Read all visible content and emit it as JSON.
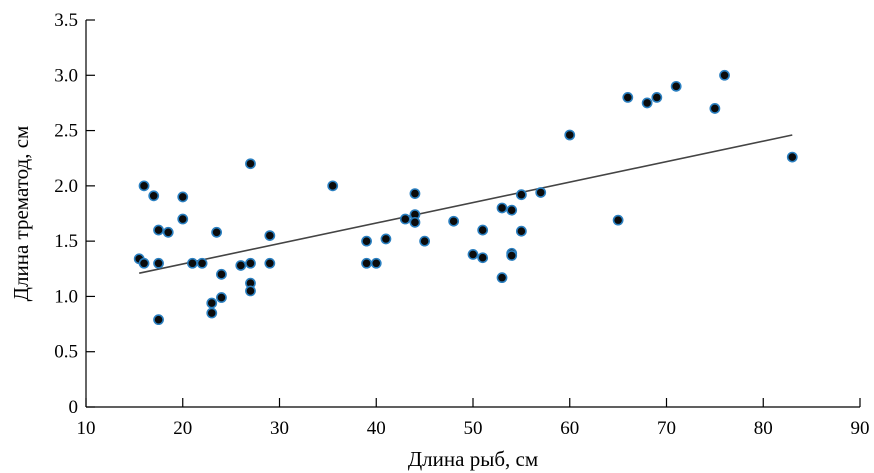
{
  "chart_data": {
    "type": "scatter",
    "title": "",
    "xlabel": "Длина рыб, см",
    "ylabel": "Длина трематод, см",
    "xlim": [
      10,
      90
    ],
    "ylim": [
      0,
      3.5
    ],
    "xticks": [
      10,
      20,
      30,
      40,
      50,
      60,
      70,
      80,
      90
    ],
    "yticks": [
      0,
      0.5,
      1.0,
      1.5,
      2.0,
      2.5,
      3.0,
      3.5
    ],
    "yticklabels": [
      "0",
      "0.5",
      "1.0",
      "1.5",
      "2.0",
      "2.5",
      "3.0",
      "3.5"
    ],
    "grid": false,
    "legend": "none",
    "colors": {
      "marker_fill": "#0b0b0b",
      "marker_edge": "#2a7fc0",
      "trend_line": "#444444",
      "axis": "#000000"
    },
    "points": [
      [
        15.5,
        1.34
      ],
      [
        16,
        1.3
      ],
      [
        16,
        2.0
      ],
      [
        17,
        1.91
      ],
      [
        17.5,
        1.6
      ],
      [
        17.5,
        1.3
      ],
      [
        17.5,
        0.79
      ],
      [
        18.5,
        1.58
      ],
      [
        20,
        1.9
      ],
      [
        20,
        1.7
      ],
      [
        21,
        1.3
      ],
      [
        22,
        1.3
      ],
      [
        23,
        0.94
      ],
      [
        23,
        0.85
      ],
      [
        23.5,
        1.58
      ],
      [
        24,
        1.2
      ],
      [
        24,
        0.99
      ],
      [
        26,
        1.28
      ],
      [
        27,
        2.2
      ],
      [
        27,
        1.3
      ],
      [
        27,
        1.12
      ],
      [
        27,
        1.05
      ],
      [
        29,
        1.55
      ],
      [
        29,
        1.3
      ],
      [
        35.5,
        2.0
      ],
      [
        39,
        1.5
      ],
      [
        39,
        1.3
      ],
      [
        40,
        1.3
      ],
      [
        41,
        1.52
      ],
      [
        43,
        1.7
      ],
      [
        44,
        1.93
      ],
      [
        44,
        1.74
      ],
      [
        44,
        1.67
      ],
      [
        45,
        1.5
      ],
      [
        48,
        1.68
      ],
      [
        50,
        1.38
      ],
      [
        51,
        1.6
      ],
      [
        51,
        1.35
      ],
      [
        53,
        1.8
      ],
      [
        53,
        1.17
      ],
      [
        54,
        1.78
      ],
      [
        54,
        1.39
      ],
      [
        54,
        1.37
      ],
      [
        55,
        1.92
      ],
      [
        55,
        1.59
      ],
      [
        57,
        1.94
      ],
      [
        60,
        2.46
      ],
      [
        65,
        1.69
      ],
      [
        66,
        2.8
      ],
      [
        68,
        2.75
      ],
      [
        69,
        2.8
      ],
      [
        71,
        2.9
      ],
      [
        75,
        2.7
      ],
      [
        76,
        3.0
      ],
      [
        83,
        2.26
      ]
    ],
    "trend_line": {
      "x": [
        15.5,
        83
      ],
      "y": [
        1.21,
        2.46
      ]
    }
  }
}
